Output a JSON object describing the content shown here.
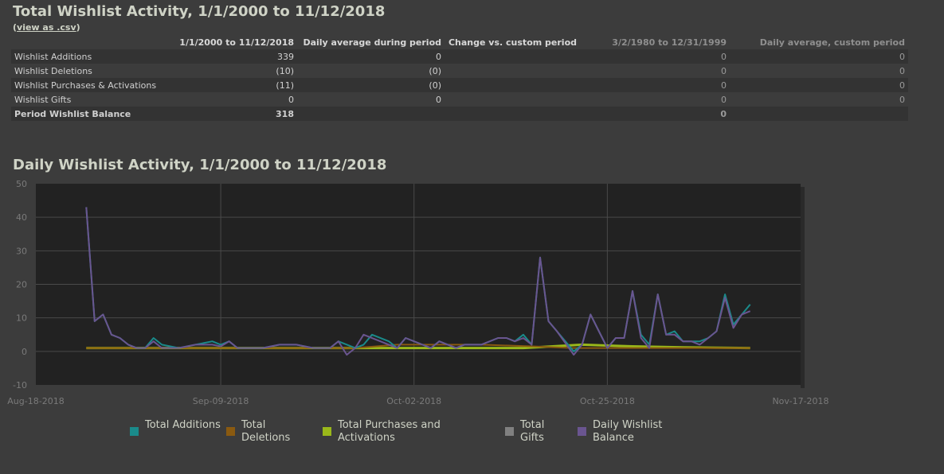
{
  "summary": {
    "title": "Total Wishlist Activity, 1/1/2000 to 11/12/2018",
    "csv_open": "(",
    "csv_link": "view as .csv",
    "csv_close": ")",
    "columns": [
      "1/1/2000 to 11/12/2018",
      "Daily average during period",
      "Change vs. custom period",
      "3/2/1980 to 12/31/1999",
      "Daily average, custom period"
    ],
    "rows": [
      {
        "label": "Wishlist Additions",
        "period": "339",
        "daily_avg": "0",
        "change": "",
        "custom": "0",
        "custom_avg": "0"
      },
      {
        "label": "Wishlist Deletions",
        "period": "(10)",
        "daily_avg": "(0)",
        "change": "",
        "custom": "0",
        "custom_avg": "0"
      },
      {
        "label": "Wishlist Purchases & Activations",
        "period": "(11)",
        "daily_avg": "(0)",
        "change": "",
        "custom": "0",
        "custom_avg": "0"
      },
      {
        "label": "Wishlist Gifts",
        "period": "0",
        "daily_avg": "0",
        "change": "",
        "custom": "0",
        "custom_avg": "0"
      },
      {
        "label": "Period Wishlist Balance",
        "period": "318",
        "daily_avg": "",
        "change": "",
        "custom": "0",
        "custom_avg": ""
      }
    ]
  },
  "chart_title": "Daily Wishlist Activity, 1/1/2000 to 11/12/2018",
  "colors": {
    "additions": "#1a8a8a",
    "deletions": "#8a5a10",
    "purchases": "#9ab81a",
    "gifts": "#808080",
    "balance": "#6a5590",
    "plot_bg": "#222222",
    "grid": "#4a4a4a"
  },
  "chart_data": {
    "type": "line",
    "title": "Daily Wishlist Activity, 1/1/2000 to 11/12/2018",
    "ylim": [
      -10,
      50
    ],
    "yticks": [
      -10,
      0,
      10,
      20,
      30,
      40,
      50
    ],
    "x_start": "2018-08-18",
    "x_end": "2018-11-17",
    "x_ticks": [
      "2018-08-18",
      "2018-09-09",
      "2018-10-02",
      "2018-10-25",
      "2018-11-17"
    ],
    "x_tick_labels": [
      "Aug-18-2018",
      "Sep-09-2018",
      "Oct-02-2018",
      "Oct-25-2018",
      "Nov-17-2018"
    ],
    "grid": true,
    "legend_position": "bottom",
    "series": [
      {
        "key": "additions",
        "name": "Total Additions",
        "points": [
          [
            "2018-08-24",
            43
          ],
          [
            "2018-08-25",
            9
          ],
          [
            "2018-08-26",
            11
          ],
          [
            "2018-08-27",
            5
          ],
          [
            "2018-08-28",
            4
          ],
          [
            "2018-08-29",
            2
          ],
          [
            "2018-08-30",
            1
          ],
          [
            "2018-08-31",
            1
          ],
          [
            "2018-09-01",
            4
          ],
          [
            "2018-09-02",
            2
          ],
          [
            "2018-09-03",
            1.5
          ],
          [
            "2018-09-04",
            1
          ],
          [
            "2018-09-06",
            2
          ],
          [
            "2018-09-08",
            3
          ],
          [
            "2018-09-09",
            2
          ],
          [
            "2018-09-10",
            3
          ],
          [
            "2018-09-11",
            1
          ],
          [
            "2018-09-14",
            1
          ],
          [
            "2018-09-16",
            2
          ],
          [
            "2018-09-18",
            2
          ],
          [
            "2018-09-20",
            1
          ],
          [
            "2018-09-22",
            1
          ],
          [
            "2018-09-23",
            3
          ],
          [
            "2018-09-25",
            1
          ],
          [
            "2018-09-26",
            2
          ],
          [
            "2018-09-27",
            5
          ],
          [
            "2018-09-29",
            3
          ],
          [
            "2018-09-30",
            1
          ],
          [
            "2018-10-01",
            4
          ],
          [
            "2018-10-04",
            1
          ],
          [
            "2018-10-05",
            3
          ],
          [
            "2018-10-07",
            1
          ],
          [
            "2018-10-08",
            2
          ],
          [
            "2018-10-10",
            2
          ],
          [
            "2018-10-12",
            4
          ],
          [
            "2018-10-13",
            4
          ],
          [
            "2018-10-14",
            3
          ],
          [
            "2018-10-15",
            5
          ],
          [
            "2018-10-16",
            2
          ],
          [
            "2018-10-17",
            28
          ],
          [
            "2018-10-18",
            9
          ],
          [
            "2018-10-19",
            6
          ],
          [
            "2018-10-21",
            0
          ],
          [
            "2018-10-22",
            2
          ],
          [
            "2018-10-23",
            11
          ],
          [
            "2018-10-24",
            6
          ],
          [
            "2018-10-25",
            1
          ],
          [
            "2018-10-26",
            4
          ],
          [
            "2018-10-27",
            4
          ],
          [
            "2018-10-28",
            18
          ],
          [
            "2018-10-29",
            5
          ],
          [
            "2018-10-30",
            2
          ],
          [
            "2018-10-31",
            17
          ],
          [
            "2018-11-01",
            5
          ],
          [
            "2018-11-02",
            6
          ],
          [
            "2018-11-03",
            3
          ],
          [
            "2018-11-04",
            3
          ],
          [
            "2018-11-05",
            3
          ],
          [
            "2018-11-06",
            4
          ],
          [
            "2018-11-07",
            6
          ],
          [
            "2018-11-08",
            17
          ],
          [
            "2018-11-09",
            8
          ],
          [
            "2018-11-10",
            11
          ],
          [
            "2018-11-11",
            14
          ]
        ]
      },
      {
        "key": "deletions",
        "name": "Total Deletions",
        "points": [
          [
            "2018-08-24",
            1
          ],
          [
            "2018-09-25",
            1
          ],
          [
            "2018-09-30",
            2
          ],
          [
            "2018-10-10",
            2
          ],
          [
            "2018-10-16",
            1.5
          ],
          [
            "2018-10-21",
            1
          ],
          [
            "2018-11-11",
            1
          ]
        ]
      },
      {
        "key": "purchases",
        "name": "Total Purchases and Activations",
        "points": [
          [
            "2018-08-24",
            1
          ],
          [
            "2018-10-15",
            1
          ],
          [
            "2018-10-22",
            2
          ],
          [
            "2018-10-28",
            1.5
          ],
          [
            "2018-11-03",
            1.2
          ],
          [
            "2018-11-11",
            1
          ]
        ]
      },
      {
        "key": "gifts",
        "name": "Total Gifts",
        "points": []
      },
      {
        "key": "balance",
        "name": "Daily Wishlist Balance",
        "points": [
          [
            "2018-08-24",
            43
          ],
          [
            "2018-08-25",
            9
          ],
          [
            "2018-08-26",
            11
          ],
          [
            "2018-08-27",
            5
          ],
          [
            "2018-08-28",
            4
          ],
          [
            "2018-08-29",
            2
          ],
          [
            "2018-08-30",
            1
          ],
          [
            "2018-08-31",
            1
          ],
          [
            "2018-09-01",
            3
          ],
          [
            "2018-09-02",
            1
          ],
          [
            "2018-09-04",
            1
          ],
          [
            "2018-09-06",
            2
          ],
          [
            "2018-09-08",
            2
          ],
          [
            "2018-09-09",
            1.5
          ],
          [
            "2018-09-10",
            3
          ],
          [
            "2018-09-11",
            1
          ],
          [
            "2018-09-14",
            1
          ],
          [
            "2018-09-16",
            2
          ],
          [
            "2018-09-18",
            2
          ],
          [
            "2018-09-20",
            1
          ],
          [
            "2018-09-22",
            1
          ],
          [
            "2018-09-23",
            3
          ],
          [
            "2018-09-24",
            -1
          ],
          [
            "2018-09-25",
            1
          ],
          [
            "2018-09-26",
            5
          ],
          [
            "2018-09-29",
            2
          ],
          [
            "2018-09-30",
            1
          ],
          [
            "2018-10-01",
            4
          ],
          [
            "2018-10-04",
            1
          ],
          [
            "2018-10-05",
            3
          ],
          [
            "2018-10-07",
            1
          ],
          [
            "2018-10-08",
            2
          ],
          [
            "2018-10-10",
            2
          ],
          [
            "2018-10-12",
            4
          ],
          [
            "2018-10-13",
            4
          ],
          [
            "2018-10-14",
            3
          ],
          [
            "2018-10-15",
            4
          ],
          [
            "2018-10-16",
            2
          ],
          [
            "2018-10-17",
            28
          ],
          [
            "2018-10-18",
            9
          ],
          [
            "2018-10-19",
            6
          ],
          [
            "2018-10-21",
            -1
          ],
          [
            "2018-10-22",
            2
          ],
          [
            "2018-10-23",
            11
          ],
          [
            "2018-10-24",
            6
          ],
          [
            "2018-10-25",
            1
          ],
          [
            "2018-10-26",
            4
          ],
          [
            "2018-10-27",
            4
          ],
          [
            "2018-10-28",
            18
          ],
          [
            "2018-10-29",
            4
          ],
          [
            "2018-10-30",
            1
          ],
          [
            "2018-10-31",
            17
          ],
          [
            "2018-11-01",
            5
          ],
          [
            "2018-11-02",
            5
          ],
          [
            "2018-11-03",
            3
          ],
          [
            "2018-11-04",
            3
          ],
          [
            "2018-11-05",
            2
          ],
          [
            "2018-11-06",
            4
          ],
          [
            "2018-11-07",
            6
          ],
          [
            "2018-11-08",
            16
          ],
          [
            "2018-11-09",
            7
          ],
          [
            "2018-11-10",
            11
          ],
          [
            "2018-11-11",
            12
          ]
        ]
      }
    ]
  }
}
